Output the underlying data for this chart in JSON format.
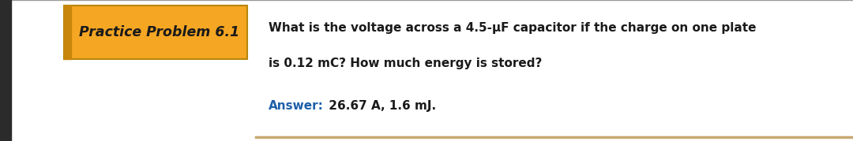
{
  "title": "Practice Problem 6.1",
  "title_bg_color": "#F5A623",
  "title_border_color": "#B8860B",
  "title_text_color": "#1a1a1a",
  "question_text_line1": "What is the voltage across a 4.5-μF capacitor if the charge on one plate",
  "question_text_line2": "is 0.12 mC? How much energy is stored?",
  "answer_label": "Answer:",
  "answer_label_color": "#1E5FA8",
  "answer_text": " 26.67 A, 1.6 mJ.",
  "answer_text_color": "#1a1a1a",
  "bg_color": "#FFFFFF",
  "left_bar_color": "#2B2B2B",
  "bottom_line_color": "#C8A870",
  "top_line_color": "#999999",
  "question_fontsize": 11.0,
  "answer_fontsize": 11.0,
  "title_fontsize": 12.5
}
